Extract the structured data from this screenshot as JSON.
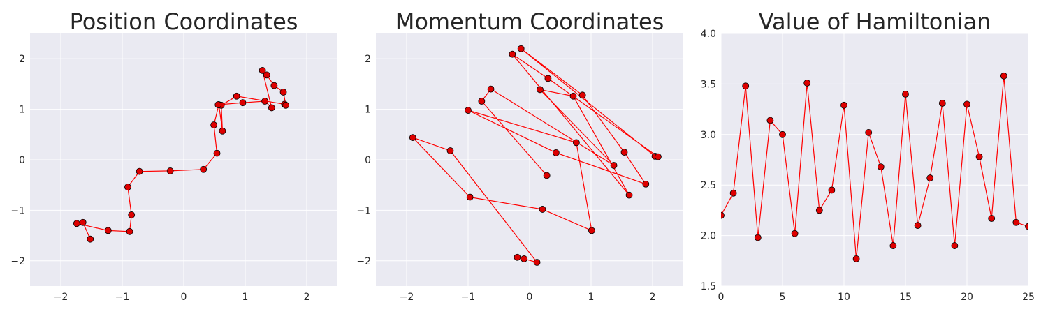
{
  "style": {
    "background": "#ffffff",
    "plot_background": "#eaeaf2",
    "grid_color": "#ffffff",
    "line_color": "#ff0000",
    "marker_fill": "#dd0000",
    "marker_edge": "#000000",
    "text_color": "#262626"
  },
  "chart_data": [
    {
      "type": "line",
      "title": "Position Coordinates",
      "xlabel": "",
      "ylabel": "",
      "xlim": [
        -2.5,
        2.5
      ],
      "ylim": [
        -2.5,
        2.5
      ],
      "xticks": [
        -2,
        -1,
        0,
        1,
        2
      ],
      "yticks": [
        -2,
        -1,
        0,
        1,
        2
      ],
      "xtick_labels": [
        "−2",
        "−1",
        "0",
        "1",
        "2"
      ],
      "ytick_labels": [
        "−2",
        "−1",
        "0",
        "1",
        "2"
      ],
      "grid": true,
      "markers": true,
      "series": [
        {
          "points": [
            [
              -1.52,
              -1.57
            ],
            [
              -1.64,
              -1.24
            ],
            [
              -1.74,
              -1.26
            ],
            [
              -1.23,
              -1.4
            ],
            [
              -0.88,
              -1.42
            ],
            [
              -0.85,
              -1.09
            ],
            [
              -0.91,
              -0.54
            ],
            [
              -0.72,
              -0.23
            ],
            [
              -0.22,
              -0.22
            ],
            [
              0.32,
              -0.19
            ],
            [
              0.54,
              0.13
            ],
            [
              0.49,
              0.69
            ],
            [
              0.57,
              1.09
            ],
            [
              0.63,
              0.57
            ],
            [
              0.61,
              1.08
            ],
            [
              0.86,
              1.26
            ],
            [
              1.64,
              1.1
            ],
            [
              1.66,
              1.08
            ],
            [
              1.62,
              1.34
            ],
            [
              1.47,
              1.47
            ],
            [
              1.35,
              1.68
            ],
            [
              1.28,
              1.77
            ],
            [
              1.43,
              1.03
            ],
            [
              1.32,
              1.16
            ],
            [
              0.96,
              1.13
            ],
            [
              0.56,
              1.09
            ]
          ]
        }
      ]
    },
    {
      "type": "line",
      "title": "Momentum Coordinates",
      "xlabel": "",
      "ylabel": "",
      "xlim": [
        -2.5,
        2.5
      ],
      "ylim": [
        -2.5,
        2.5
      ],
      "xticks": [
        -2,
        -1,
        0,
        1,
        2
      ],
      "yticks": [
        -2,
        -1,
        0,
        1,
        2
      ],
      "xtick_labels": [
        "−2",
        "−1",
        "0",
        "1",
        "2"
      ],
      "ytick_labels": [
        "−2",
        "−1",
        "0",
        "1",
        "2"
      ],
      "grid": true,
      "markers": true,
      "series": [
        {
          "points": [
            [
              -0.2,
              -1.93
            ],
            [
              -0.09,
              -1.96
            ],
            [
              0.12,
              -2.03
            ],
            [
              -1.29,
              0.18
            ],
            [
              -1.9,
              0.44
            ],
            [
              -0.97,
              -0.74
            ],
            [
              0.21,
              -0.98
            ],
            [
              1.01,
              -1.4
            ],
            [
              0.76,
              0.34
            ],
            [
              -1.0,
              0.98
            ],
            [
              0.43,
              0.14
            ],
            [
              1.89,
              -0.48
            ],
            [
              1.54,
              0.15
            ],
            [
              0.86,
              1.28
            ],
            [
              -0.14,
              2.2
            ],
            [
              2.04,
              0.07
            ],
            [
              2.09,
              0.06
            ],
            [
              0.3,
              1.61
            ],
            [
              -0.28,
              2.09
            ],
            [
              1.62,
              -0.7
            ],
            [
              0.71,
              1.26
            ],
            [
              0.17,
              1.39
            ],
            [
              1.37,
              -0.11
            ],
            [
              -0.63,
              1.4
            ],
            [
              -0.78,
              1.16
            ],
            [
              0.28,
              -0.31
            ]
          ]
        }
      ]
    },
    {
      "type": "line",
      "title": "Value of Hamiltonian",
      "xlabel": "",
      "ylabel": "",
      "xlim": [
        0,
        25
      ],
      "ylim": [
        1.5,
        4.0
      ],
      "xticks": [
        0,
        5,
        10,
        15,
        20,
        25
      ],
      "yticks": [
        1.5,
        2.0,
        2.5,
        3.0,
        3.5,
        4.0
      ],
      "xtick_labels": [
        "0",
        "5",
        "10",
        "15",
        "20",
        "25"
      ],
      "ytick_labels": [
        "1.5",
        "2.0",
        "2.5",
        "3.0",
        "3.5",
        "4.0"
      ],
      "grid": true,
      "markers": true,
      "series": [
        {
          "x": [
            0,
            1,
            2,
            3,
            4,
            5,
            6,
            7,
            8,
            9,
            10,
            11,
            12,
            13,
            14,
            15,
            16,
            17,
            18,
            19,
            20,
            21,
            22,
            23,
            24,
            25
          ],
          "y": [
            2.2,
            2.42,
            3.48,
            1.98,
            3.14,
            3.0,
            2.02,
            3.51,
            2.25,
            2.45,
            3.29,
            1.77,
            3.02,
            2.68,
            1.9,
            3.4,
            2.1,
            2.57,
            3.31,
            1.9,
            3.3,
            2.78,
            2.17,
            3.58,
            2.13,
            2.09
          ]
        }
      ]
    }
  ]
}
